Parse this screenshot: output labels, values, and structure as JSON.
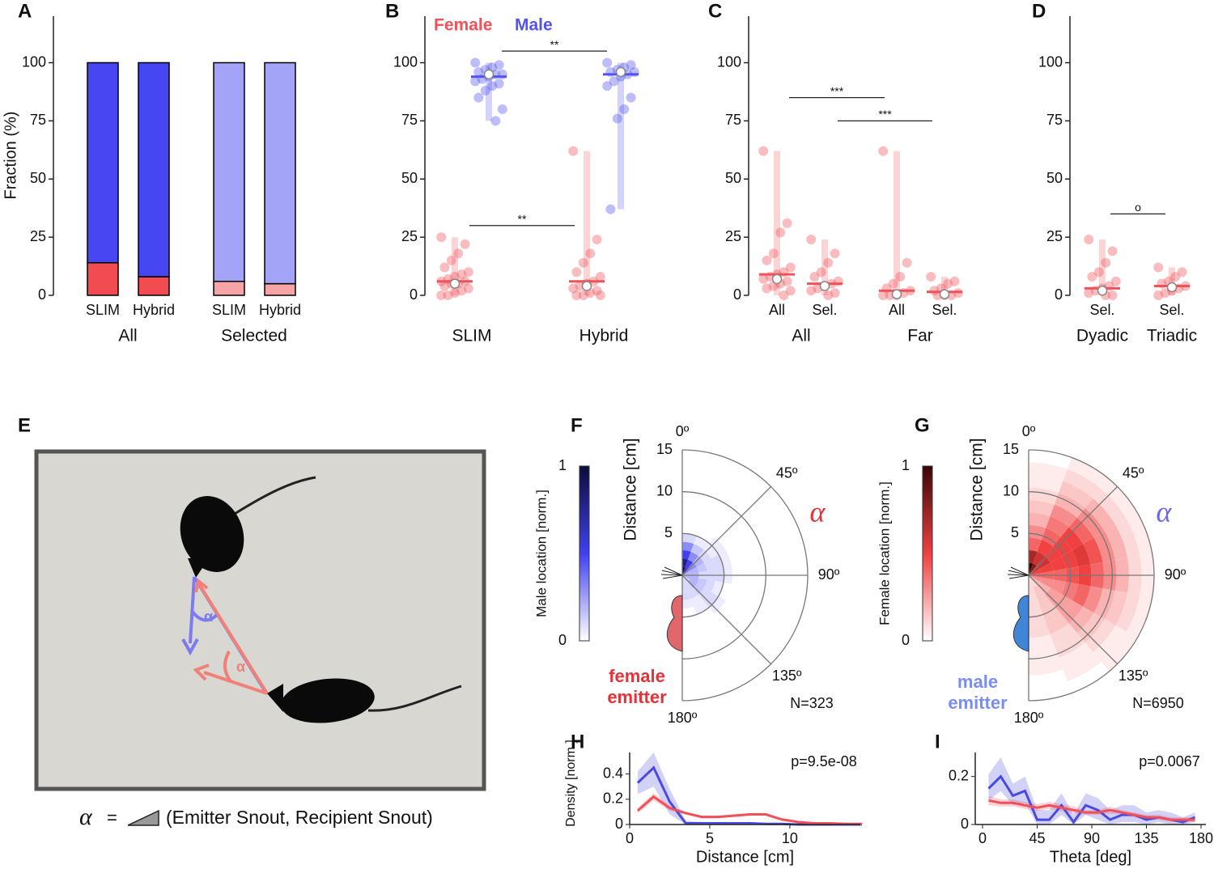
{
  "chart_data": [
    {
      "panel": "A",
      "type": "stacked_bar",
      "categories": [
        "SLIM",
        "Hybrid",
        "SLIM",
        "Hybrid"
      ],
      "groups": [
        "All",
        "Selected"
      ],
      "ylabel": "Fraction (%)",
      "ylim": [
        0,
        120
      ],
      "yticks": [
        0,
        25,
        50,
        75,
        100
      ],
      "series": [
        {
          "colors": [
            "#f24b52",
            "#f24b52",
            "#f7a4a6",
            "#f7a4a6"
          ],
          "values": [
            14,
            8,
            6,
            5
          ]
        },
        {
          "colors": [
            "#4646f2",
            "#4646f2",
            "#a3a3f7",
            "#a3a3f7"
          ],
          "values": [
            86,
            92,
            94,
            95
          ]
        }
      ]
    },
    {
      "panel": "B",
      "type": "strip",
      "categories": [
        "SLIM",
        "Hybrid"
      ],
      "ylim": [
        0,
        120
      ],
      "yticks": [
        0,
        25,
        50,
        75,
        100
      ],
      "legend": true,
      "series": [
        {
          "name": "Female",
          "color": "#f0525a",
          "medians": [
            6,
            6
          ],
          "means": [
            5,
            4
          ],
          "points": [
            [
              25,
              22,
              18,
              15,
              12,
              10,
              9,
              8,
              7,
              6,
              6,
              5,
              5,
              4,
              3,
              2,
              1,
              0,
              0
            ],
            [
              62,
              24,
              18,
              14,
              10,
              8,
              6,
              5,
              4,
              3,
              2,
              1,
              0,
              0,
              0
            ]
          ]
        },
        {
          "name": "Male",
          "color": "#5252f0",
          "medians": [
            94,
            95
          ],
          "means": [
            95,
            96
          ],
          "points": [
            [
              100,
              99,
              98,
              97,
              96,
              95,
              95,
              94,
              93,
              92,
              91,
              90,
              88,
              85,
              80,
              75
            ],
            [
              100,
              99,
              98,
              97,
              96,
              96,
              95,
              94,
              92,
              90,
              85,
              80,
              76,
              37
            ]
          ]
        }
      ],
      "brackets": [
        {
          "label": "**",
          "y": 105
        },
        {
          "label": "**",
          "y": 30
        }
      ]
    },
    {
      "panel": "C",
      "type": "strip",
      "categories": [
        "All",
        "Sel.",
        "All",
        "Sel."
      ],
      "groups": [
        "All",
        "Far"
      ],
      "ylim": [
        0,
        120
      ],
      "yticks": [
        0,
        25,
        50,
        75,
        100
      ],
      "series": [
        {
          "color": "#f0525a",
          "medians": [
            9,
            5,
            2,
            1.5
          ],
          "means": [
            7,
            4,
            0.5,
            0.5
          ],
          "points": [
            [
              62,
              31,
              27,
              18,
              15,
              12,
              10,
              9,
              8,
              7,
              6,
              5,
              4,
              3,
              2,
              0
            ],
            [
              24,
              18,
              14,
              10,
              8,
              6,
              5,
              4,
              3,
              2,
              1,
              0
            ],
            [
              62,
              14,
              8,
              5,
              3,
              2,
              1,
              0,
              0,
              0
            ],
            [
              8,
              6,
              5,
              3,
              2,
              1,
              0,
              0,
              0
            ]
          ]
        }
      ],
      "brackets": [
        {
          "label": "***",
          "y": 85
        },
        {
          "label": "***",
          "y": 75
        }
      ]
    },
    {
      "panel": "D",
      "type": "strip",
      "categories": [
        "Sel.",
        "Sel."
      ],
      "groups": [
        "Dyadic",
        "Triadic"
      ],
      "ylim": [
        0,
        120
      ],
      "yticks": [
        0,
        25,
        50,
        75,
        100
      ],
      "series": [
        {
          "color": "#f0525a",
          "medians": [
            3,
            4
          ],
          "means": [
            2,
            3.5
          ],
          "points": [
            [
              24,
              19,
              14,
              10,
              8,
              6,
              4,
              3,
              2,
              1,
              0,
              0
            ],
            [
              12,
              10,
              8,
              6,
              5,
              4,
              3,
              2,
              1,
              0
            ]
          ]
        }
      ],
      "brackets": [
        {
          "label": "o",
          "y": 35
        }
      ]
    },
    {
      "panel": "F",
      "type": "polar_heatmap",
      "rlabel": "Distance [cm]",
      "rlim": [
        0,
        15
      ],
      "rticks": [
        5,
        10,
        15
      ],
      "thetaticks": [
        {
          "value": 0,
          "label": "0º"
        },
        {
          "value": 45,
          "label": "45º"
        },
        {
          "value": 90,
          "label": "90º"
        },
        {
          "value": 135,
          "label": "135º"
        },
        {
          "value": 180,
          "label": "180º"
        }
      ],
      "colorbar_label": "Male location [norm.]",
      "colorbar_ticks": [
        0,
        1
      ],
      "colormap": [
        "#ffffff",
        "#4040f0",
        "#0c0c3c"
      ],
      "symbol": "α",
      "symbol_color": "#e8323a",
      "emitter_label": [
        "female",
        "emitter"
      ],
      "emitter_color": "#e8323a",
      "head_color": "#e3666c",
      "n_label": "N=323",
      "r_bins": [
        0,
        1,
        2,
        3,
        4,
        5,
        6
      ],
      "theta_bins": [
        0,
        20,
        40,
        60,
        80,
        100,
        120,
        140,
        160,
        180
      ],
      "values": [
        [
          1.0,
          0.6,
          0.3,
          0.2,
          0.2,
          0.2,
          0.1,
          0.1,
          0.1
        ],
        [
          0.8,
          0.5,
          0.3,
          0.2,
          0.2,
          0.2,
          0.2,
          0.1,
          0.1
        ],
        [
          0.5,
          0.3,
          0.2,
          0.15,
          0.1,
          0.15,
          0.15,
          0.1,
          0.1
        ],
        [
          0.3,
          0.15,
          0.1,
          0.1,
          0.1,
          0.1,
          0.1,
          0.05,
          0.05
        ],
        [
          0.1,
          0.05,
          0.05,
          0.1,
          0.1,
          0.05,
          0.1,
          0.05,
          0
        ],
        [
          0,
          0,
          0.05,
          0.05,
          0.05,
          0,
          0.05,
          0,
          0
        ]
      ]
    },
    {
      "panel": "G",
      "type": "polar_heatmap",
      "rlabel": "Distance [cm]",
      "rlim": [
        0,
        15
      ],
      "rticks": [
        5,
        10,
        15
      ],
      "thetaticks": [
        {
          "value": 0,
          "label": "0º"
        },
        {
          "value": 45,
          "label": "45º"
        },
        {
          "value": 90,
          "label": "90º"
        },
        {
          "value": 135,
          "label": "135º"
        },
        {
          "value": 180,
          "label": "180º"
        }
      ],
      "colorbar_label": "Female location [norm.]",
      "colorbar_ticks": [
        0,
        1
      ],
      "colormap": [
        "#ffffff",
        "#f04040",
        "#3a0505"
      ],
      "symbol": "α",
      "symbol_color": "#6a6ae8",
      "emitter_label": [
        "male",
        "emitter"
      ],
      "emitter_color": "#7a8ef0",
      "head_color": "#3f86d8",
      "n_label": "N=6950",
      "r_bins": [
        0,
        1.5,
        3,
        4.5,
        6,
        7.5,
        9,
        10.5,
        12,
        13.5,
        15
      ],
      "theta_bins": [
        0,
        20,
        40,
        60,
        80,
        100,
        120,
        140,
        160,
        180
      ],
      "values": [
        [
          1.0,
          0.8,
          0.6,
          0.5,
          0.4,
          0.3,
          0.2,
          0.1,
          0.1
        ],
        [
          0.7,
          0.6,
          0.6,
          0.5,
          0.4,
          0.3,
          0.2,
          0.15,
          0.1
        ],
        [
          0.4,
          0.5,
          0.5,
          0.5,
          0.4,
          0.3,
          0.25,
          0.15,
          0.1
        ],
        [
          0.3,
          0.4,
          0.5,
          0.5,
          0.45,
          0.35,
          0.25,
          0.15,
          0.1
        ],
        [
          0.2,
          0.35,
          0.5,
          0.55,
          0.5,
          0.4,
          0.25,
          0.15,
          0.1
        ],
        [
          0.15,
          0.3,
          0.4,
          0.45,
          0.4,
          0.3,
          0.2,
          0.1,
          0.05
        ],
        [
          0.1,
          0.2,
          0.3,
          0.3,
          0.3,
          0.2,
          0.15,
          0.1,
          0.05
        ],
        [
          0.05,
          0.15,
          0.2,
          0.2,
          0.2,
          0.15,
          0.1,
          0.05,
          0.05
        ],
        [
          0.05,
          0.1,
          0.1,
          0.1,
          0.1,
          0.1,
          0.05,
          0.05,
          0
        ],
        [
          0,
          0.05,
          0.05,
          0.05,
          0.05,
          0.05,
          0.05,
          0,
          0
        ]
      ]
    },
    {
      "panel": "H",
      "type": "line",
      "ylabel": "Density [norm.]",
      "xlabel": "Distance [cm]",
      "annotation": "p=9.5e-08",
      "xlim": [
        0,
        14.4
      ],
      "xticks": [
        0,
        5,
        10
      ],
      "ylim": [
        0,
        0.57
      ],
      "yticks": [
        0,
        0.2,
        0.4
      ],
      "x": [
        0.5,
        1.5,
        2.5,
        3.5,
        4.5,
        5.5,
        6.5,
        7.5,
        8.5,
        9.5,
        10.5,
        11.5,
        12.5,
        13.5,
        14.5
      ],
      "series": [
        {
          "color": "#4a4ae0",
          "values": [
            0.33,
            0.45,
            0.18,
            0.01,
            0.01,
            0.01,
            0.01,
            0.01,
            0.005,
            0.005,
            0,
            0,
            0,
            0,
            0
          ],
          "lower": [
            0.24,
            0.3,
            0.08,
            0,
            0,
            0,
            0,
            0,
            0,
            0,
            0,
            0,
            0,
            0,
            0
          ],
          "upper": [
            0.42,
            0.57,
            0.28,
            0.03,
            0.02,
            0.02,
            0.02,
            0.02,
            0.01,
            0.01,
            0.005,
            0.005,
            0.005,
            0.005,
            0.005
          ]
        },
        {
          "color": "#f0505a",
          "values": [
            0.11,
            0.22,
            0.13,
            0.09,
            0.06,
            0.06,
            0.07,
            0.08,
            0.08,
            0.04,
            0.02,
            0.01,
            0.01,
            0.005,
            0.005
          ],
          "lower": [
            0.09,
            0.19,
            0.11,
            0.08,
            0.05,
            0.05,
            0.06,
            0.07,
            0.07,
            0.03,
            0.015,
            0.005,
            0.005,
            0,
            0
          ],
          "upper": [
            0.13,
            0.25,
            0.15,
            0.1,
            0.07,
            0.07,
            0.08,
            0.09,
            0.09,
            0.05,
            0.025,
            0.015,
            0.015,
            0.01,
            0.01
          ]
        }
      ]
    },
    {
      "panel": "I",
      "type": "line",
      "xlabel": "Theta [deg]",
      "annotation": "p=0.0067",
      "xlim": [
        -6,
        184
      ],
      "xticks": [
        0,
        45,
        90,
        135,
        180
      ],
      "ylim": [
        0,
        0.3
      ],
      "yticks": [
        0,
        0.2
      ],
      "x": [
        5,
        15,
        25,
        35,
        45,
        55,
        65,
        75,
        85,
        95,
        105,
        115,
        125,
        135,
        145,
        155,
        165,
        175
      ],
      "series": [
        {
          "color": "#4a4ae0",
          "values": [
            0.15,
            0.2,
            0.12,
            0.14,
            0.02,
            0.02,
            0.08,
            0.01,
            0.08,
            0.06,
            0.02,
            0.04,
            0.04,
            0.02,
            0.03,
            0.02,
            0.01,
            0.03
          ],
          "lower": [
            0.1,
            0.14,
            0.08,
            0.09,
            0,
            0,
            0.04,
            0,
            0.04,
            0.02,
            0,
            0.01,
            0.01,
            0,
            0.01,
            0,
            0,
            0.01
          ],
          "upper": [
            0.21,
            0.28,
            0.17,
            0.2,
            0.06,
            0.06,
            0.13,
            0.04,
            0.13,
            0.11,
            0.06,
            0.08,
            0.08,
            0.05,
            0.06,
            0.05,
            0.03,
            0.05
          ]
        },
        {
          "color": "#f0505a",
          "values": [
            0.1,
            0.09,
            0.09,
            0.08,
            0.07,
            0.08,
            0.07,
            0.06,
            0.05,
            0.05,
            0.06,
            0.05,
            0.04,
            0.03,
            0.03,
            0.02,
            0.02,
            0.02
          ],
          "lower": [
            0.08,
            0.075,
            0.075,
            0.065,
            0.055,
            0.065,
            0.055,
            0.045,
            0.04,
            0.04,
            0.045,
            0.04,
            0.03,
            0.02,
            0.02,
            0.01,
            0.01,
            0.01
          ],
          "upper": [
            0.12,
            0.105,
            0.105,
            0.095,
            0.085,
            0.095,
            0.085,
            0.075,
            0.06,
            0.06,
            0.075,
            0.06,
            0.05,
            0.04,
            0.04,
            0.03,
            0.03,
            0.03
          ]
        }
      ]
    }
  ],
  "photo_panel": {
    "panel": "E",
    "angle_labels": [
      "α",
      "α"
    ],
    "caption_symbol": "α",
    "caption_equals": "=",
    "caption_text": "(Emitter Snout, Recipient Snout)"
  }
}
